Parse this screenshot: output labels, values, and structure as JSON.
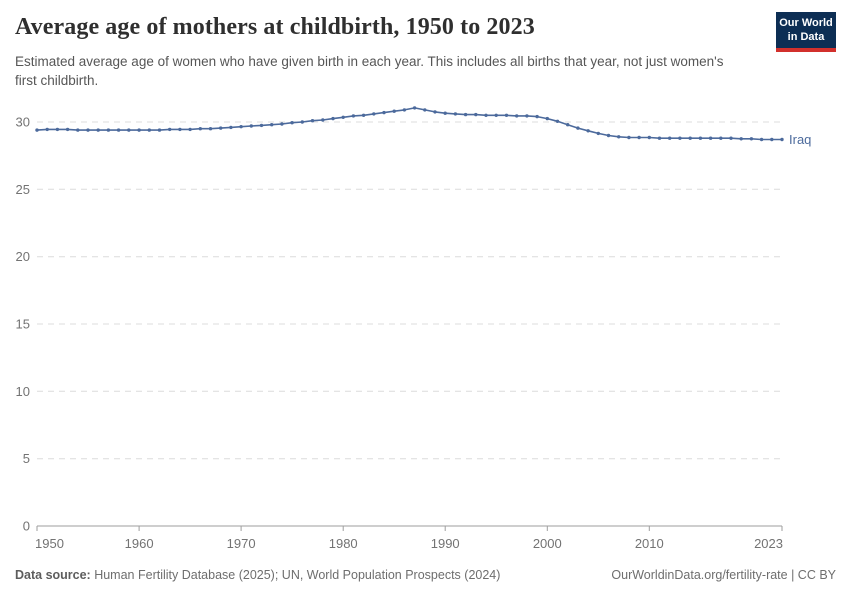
{
  "header": {
    "title": "Average age of mothers at childbirth, 1950 to 2023",
    "subtitle": "Estimated average age of women who have given birth in each year. This includes all births that year, not just women's first childbirth.",
    "logo": {
      "line1": "Our World",
      "line2": "in Data",
      "bg": "#0d2e54",
      "stripe": "#d2302c"
    }
  },
  "footer": {
    "source_label": "Data source:",
    "source_text": " Human Fertility Database (2025); UN, World Population Prospects (2024)",
    "right_text": "OurWorldinData.org/fertility-rate | CC BY"
  },
  "chart_data": {
    "type": "line",
    "title": "Average age of mothers at childbirth, 1950 to 2023",
    "xlabel": "",
    "ylabel": "",
    "xlim": [
      1950,
      2023
    ],
    "ylim": [
      0,
      30
    ],
    "yticks": [
      0,
      5,
      10,
      15,
      20,
      25,
      30
    ],
    "xticks": [
      1950,
      1960,
      1970,
      1980,
      1990,
      2000,
      2010,
      2023
    ],
    "grid": "horizontal-dashed",
    "legend_position": "end-of-line-label",
    "colors": {
      "line": "#4c6a9c",
      "grid": "#dcdcdc",
      "axis": "#9e9e9e",
      "tick_text": "#737373"
    },
    "x": [
      1950,
      1951,
      1952,
      1953,
      1954,
      1955,
      1956,
      1957,
      1958,
      1959,
      1960,
      1961,
      1962,
      1963,
      1964,
      1965,
      1966,
      1967,
      1968,
      1969,
      1970,
      1971,
      1972,
      1973,
      1974,
      1975,
      1976,
      1977,
      1978,
      1979,
      1980,
      1981,
      1982,
      1983,
      1984,
      1985,
      1986,
      1987,
      1988,
      1989,
      1990,
      1991,
      1992,
      1993,
      1994,
      1995,
      1996,
      1997,
      1998,
      1999,
      2000,
      2001,
      2002,
      2003,
      2004,
      2005,
      2006,
      2007,
      2008,
      2009,
      2010,
      2011,
      2012,
      2013,
      2014,
      2015,
      2016,
      2017,
      2018,
      2019,
      2020,
      2021,
      2022,
      2023
    ],
    "series": [
      {
        "name": "Iraq",
        "values": [
          29.4,
          29.45,
          29.45,
          29.45,
          29.4,
          29.4,
          29.4,
          29.4,
          29.4,
          29.4,
          29.4,
          29.4,
          29.4,
          29.45,
          29.45,
          29.45,
          29.5,
          29.5,
          29.55,
          29.6,
          29.65,
          29.7,
          29.75,
          29.8,
          29.85,
          29.95,
          30.0,
          30.1,
          30.15,
          30.25,
          30.35,
          30.45,
          30.5,
          30.6,
          30.7,
          30.8,
          30.9,
          31.05,
          30.9,
          30.75,
          30.65,
          30.6,
          30.55,
          30.55,
          30.5,
          30.5,
          30.5,
          30.45,
          30.45,
          30.4,
          30.25,
          30.05,
          29.8,
          29.55,
          29.35,
          29.15,
          29.0,
          28.9,
          28.85,
          28.85,
          28.85,
          28.8,
          28.8,
          28.8,
          28.8,
          28.8,
          28.8,
          28.8,
          28.8,
          28.75,
          28.75,
          28.7,
          28.7,
          28.7
        ]
      }
    ]
  }
}
